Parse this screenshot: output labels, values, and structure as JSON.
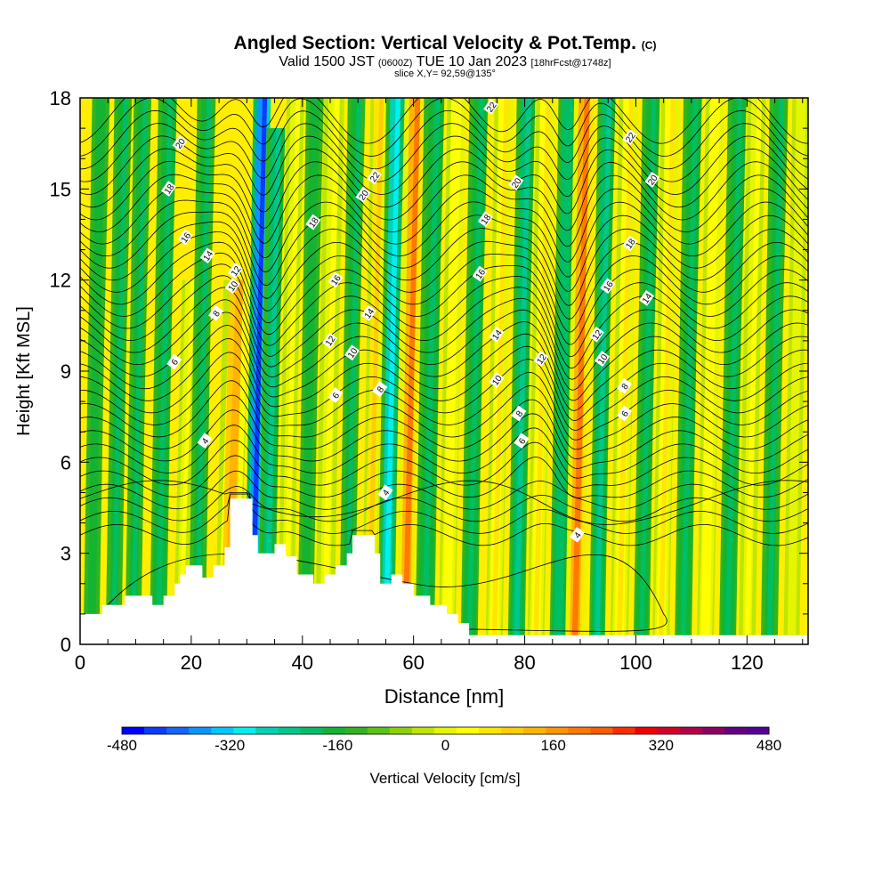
{
  "header": {
    "title": "Angled Section: Vertical Velocity & Pot.Temp.",
    "title_mark": "(C)",
    "valid_prefix": "Valid 1500 JST",
    "valid_zulu": "(0600Z)",
    "valid_main": "TUE 10 Jan 2023",
    "valid_fcst": "[18hrFcst@1748z]",
    "slice": "slice X,Y= 92,59@135°"
  },
  "chart_data": {
    "type": "heatmap",
    "title": "Angled Section: Vertical Velocity & Pot.Temp.",
    "xlabel": "Distance [nm]",
    "ylabel": "Height [Kft MSL]",
    "xlim": [
      0,
      131
    ],
    "ylim": [
      0,
      18
    ],
    "x_ticks": [
      0,
      20,
      40,
      60,
      80,
      100,
      120
    ],
    "y_ticks": [
      0,
      3,
      6,
      9,
      12,
      15,
      18
    ],
    "shaded_variable": "Vertical Velocity [cm/s]",
    "colorbar": {
      "label": "Vertical Velocity [cm/s]",
      "min": -480,
      "max": 480,
      "step": 40,
      "tick_labels": [
        "-480",
        "-320",
        "-160",
        "0",
        "160",
        "320",
        "480"
      ],
      "colors": [
        "#0000ff",
        "#0a3cff",
        "#1464ff",
        "#0a96ff",
        "#00c8ff",
        "#00f0f0",
        "#00d2b4",
        "#00c88c",
        "#00be64",
        "#14b432",
        "#32b41e",
        "#5ac314",
        "#8cd20a",
        "#bee600",
        "#e6f500",
        "#ffff00",
        "#ffe600",
        "#ffcd00",
        "#ffb400",
        "#ff9600",
        "#ff7800",
        "#ff5a00",
        "#ff2d00",
        "#f00000",
        "#d20028",
        "#b40046",
        "#8c0064",
        "#640082",
        "#500096"
      ]
    },
    "vertical_velocity_bands": [
      {
        "x": 2,
        "w": 1.5,
        "ztop": 18,
        "value": -110
      },
      {
        "x": 6,
        "w": 1.5,
        "ztop": 18,
        "value": -140
      },
      {
        "x": 9.5,
        "w": 1.5,
        "ztop": 18,
        "value": -140
      },
      {
        "x": 14,
        "w": 1.6,
        "ztop": 18,
        "value": -150
      },
      {
        "x": 18,
        "w": 1.3,
        "ztop": 12,
        "value": 140
      },
      {
        "x": 21,
        "w": 1.6,
        "ztop": 18,
        "value": -130
      },
      {
        "x": 26.5,
        "w": 2.4,
        "ztop": 12,
        "value": 250
      },
      {
        "x": 31,
        "w": 1.5,
        "ztop": 18,
        "value": -430
      },
      {
        "x": 33.5,
        "w": 1.6,
        "ztop": 17,
        "value": -200
      },
      {
        "x": 37,
        "w": 1.5,
        "ztop": 18,
        "value": 140
      },
      {
        "x": 40.5,
        "w": 1.5,
        "ztop": 18,
        "value": -110
      },
      {
        "x": 44,
        "w": 1.8,
        "ztop": 18,
        "value": 130
      },
      {
        "x": 48,
        "w": 1.5,
        "ztop": 18,
        "value": -130
      },
      {
        "x": 52,
        "w": 1.4,
        "ztop": 18,
        "value": 200
      },
      {
        "x": 55,
        "w": 1.6,
        "ztop": 18,
        "value": -260
      },
      {
        "x": 58.5,
        "w": 1.7,
        "ztop": 18,
        "value": 320
      },
      {
        "x": 62,
        "w": 1.8,
        "ztop": 18,
        "value": -150
      },
      {
        "x": 66,
        "w": 1.6,
        "ztop": 18,
        "value": 150
      },
      {
        "x": 70,
        "w": 1.6,
        "ztop": 18,
        "value": -150
      },
      {
        "x": 74.5,
        "w": 1.6,
        "ztop": 18,
        "value": 180
      },
      {
        "x": 78.5,
        "w": 1.6,
        "ztop": 18,
        "value": -200
      },
      {
        "x": 82,
        "w": 1.6,
        "ztop": 18,
        "value": 160
      },
      {
        "x": 86,
        "w": 1.6,
        "ztop": 18,
        "value": -160
      },
      {
        "x": 89,
        "w": 1.8,
        "ztop": 18,
        "value": 340
      },
      {
        "x": 93,
        "w": 1.5,
        "ztop": 18,
        "value": -170
      },
      {
        "x": 97,
        "w": 1.7,
        "ztop": 18,
        "value": 170
      },
      {
        "x": 101,
        "w": 1.5,
        "ztop": 18,
        "value": -150
      },
      {
        "x": 104.5,
        "w": 1.6,
        "ztop": 18,
        "value": 160
      },
      {
        "x": 108.5,
        "w": 1.6,
        "ztop": 18,
        "value": -150
      },
      {
        "x": 112.5,
        "w": 1.6,
        "ztop": 18,
        "value": 150
      },
      {
        "x": 116.5,
        "w": 1.6,
        "ztop": 18,
        "value": -150
      },
      {
        "x": 120,
        "w": 1.6,
        "ztop": 18,
        "value": 130
      },
      {
        "x": 124,
        "w": 1.6,
        "ztop": 18,
        "value": -130
      },
      {
        "x": 128,
        "w": 1.5,
        "ztop": 18,
        "value": 110
      }
    ],
    "terrain": [
      [
        0,
        1.0
      ],
      [
        4,
        1.0
      ],
      [
        4,
        1.3
      ],
      [
        8,
        1.3
      ],
      [
        8,
        1.6
      ],
      [
        13,
        1.6
      ],
      [
        13,
        1.3
      ],
      [
        15,
        1.3
      ],
      [
        15,
        1.6
      ],
      [
        17,
        1.6
      ],
      [
        17,
        2.0
      ],
      [
        18,
        2.0
      ],
      [
        18,
        2.3
      ],
      [
        19,
        2.3
      ],
      [
        19,
        2.6
      ],
      [
        22,
        2.6
      ],
      [
        22,
        2.2
      ],
      [
        24,
        2.2
      ],
      [
        24,
        2.6
      ],
      [
        26,
        2.6
      ],
      [
        26,
        3.2
      ],
      [
        27,
        3.2
      ],
      [
        27,
        4.8
      ],
      [
        31,
        4.8
      ],
      [
        31,
        3.6
      ],
      [
        32,
        3.6
      ],
      [
        32,
        3.0
      ],
      [
        35,
        3.0
      ],
      [
        35,
        3.3
      ],
      [
        37,
        3.3
      ],
      [
        37,
        2.9
      ],
      [
        39,
        2.9
      ],
      [
        39,
        2.3
      ],
      [
        42,
        2.3
      ],
      [
        42,
        2.0
      ],
      [
        44,
        2.0
      ],
      [
        44,
        2.3
      ],
      [
        46,
        2.3
      ],
      [
        46,
        2.6
      ],
      [
        48,
        2.6
      ],
      [
        48,
        3.0
      ],
      [
        49,
        3.0
      ],
      [
        49,
        3.6
      ],
      [
        53,
        3.6
      ],
      [
        53,
        3.0
      ],
      [
        54,
        3.0
      ],
      [
        54,
        2.0
      ],
      [
        56,
        2.0
      ],
      [
        56,
        2.3
      ],
      [
        58,
        2.3
      ],
      [
        58,
        2.0
      ],
      [
        60,
        2.0
      ],
      [
        60,
        1.6
      ],
      [
        63,
        1.6
      ],
      [
        63,
        1.3
      ],
      [
        66,
        1.3
      ],
      [
        66,
        1.0
      ],
      [
        68,
        1.0
      ],
      [
        68,
        0.7
      ],
      [
        70,
        0.7
      ],
      [
        70,
        0.3
      ],
      [
        131,
        0.3
      ]
    ],
    "isentropes": {
      "levels": [
        4,
        6,
        8,
        10,
        12,
        14,
        16,
        18,
        20,
        22
      ],
      "contour_labels": [
        {
          "x": 18,
          "z": 16.5,
          "text": "20"
        },
        {
          "x": 16,
          "z": 15.0,
          "text": "18"
        },
        {
          "x": 19,
          "z": 13.4,
          "text": "16"
        },
        {
          "x": 23,
          "z": 12.8,
          "text": "14"
        },
        {
          "x": 28,
          "z": 12.3,
          "text": "12"
        },
        {
          "x": 27.5,
          "z": 11.8,
          "text": "10"
        },
        {
          "x": 24.5,
          "z": 10.9,
          "text": "8"
        },
        {
          "x": 17,
          "z": 9.3,
          "text": "6"
        },
        {
          "x": 22.5,
          "z": 6.7,
          "text": "4"
        },
        {
          "x": 53,
          "z": 15.4,
          "text": "22"
        },
        {
          "x": 51,
          "z": 14.8,
          "text": "20"
        },
        {
          "x": 42,
          "z": 13.9,
          "text": "18"
        },
        {
          "x": 46,
          "z": 12.0,
          "text": "16"
        },
        {
          "x": 52,
          "z": 10.9,
          "text": "14"
        },
        {
          "x": 45,
          "z": 10.0,
          "text": "12"
        },
        {
          "x": 49,
          "z": 9.6,
          "text": "10"
        },
        {
          "x": 54,
          "z": 8.4,
          "text": "8"
        },
        {
          "x": 46,
          "z": 8.2,
          "text": "6"
        },
        {
          "x": 55,
          "z": 5.0,
          "text": "4"
        },
        {
          "x": 74,
          "z": 17.7,
          "text": "22"
        },
        {
          "x": 78.5,
          "z": 15.2,
          "text": "20"
        },
        {
          "x": 73,
          "z": 14.0,
          "text": "18"
        },
        {
          "x": 72,
          "z": 12.2,
          "text": "16"
        },
        {
          "x": 75,
          "z": 10.2,
          "text": "14"
        },
        {
          "x": 83,
          "z": 9.4,
          "text": "12"
        },
        {
          "x": 75,
          "z": 8.7,
          "text": "10"
        },
        {
          "x": 79,
          "z": 7.6,
          "text": "8"
        },
        {
          "x": 79.5,
          "z": 6.7,
          "text": "6"
        },
        {
          "x": 89.5,
          "z": 3.6,
          "text": "4"
        },
        {
          "x": 99,
          "z": 16.7,
          "text": "22"
        },
        {
          "x": 103,
          "z": 15.3,
          "text": "20"
        },
        {
          "x": 99,
          "z": 13.2,
          "text": "18"
        },
        {
          "x": 95,
          "z": 11.8,
          "text": "16"
        },
        {
          "x": 102,
          "z": 11.4,
          "text": "14"
        },
        {
          "x": 93,
          "z": 10.2,
          "text": "12"
        },
        {
          "x": 94,
          "z": 9.4,
          "text": "10"
        },
        {
          "x": 98,
          "z": 8.5,
          "text": "8"
        },
        {
          "x": 98,
          "z": 7.6,
          "text": "6"
        }
      ]
    }
  }
}
